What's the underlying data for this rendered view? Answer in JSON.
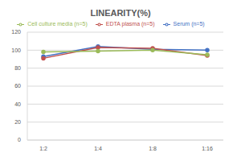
{
  "chart_data": {
    "type": "line",
    "title": "LINEARITY(%)",
    "categories": [
      "1:2",
      "1:4",
      "1:8",
      "1:16"
    ],
    "series": [
      {
        "name": "Serum (n=5)",
        "color": "#4472c4",
        "values": [
          93,
          104,
          101,
          100
        ]
      },
      {
        "name": "EDTA plasma (n=5)",
        "color": "#c0504d",
        "values": [
          91,
          103,
          102,
          94
        ]
      },
      {
        "name": "Cell culture media (n=5)",
        "color": "#9bbb59",
        "values": [
          98,
          99,
          100,
          95
        ]
      }
    ],
    "ylim": [
      0,
      120
    ],
    "yticks": [
      0,
      20,
      40,
      60,
      80,
      100,
      120
    ],
    "grid": true,
    "legend": "top",
    "marker": "circle"
  }
}
